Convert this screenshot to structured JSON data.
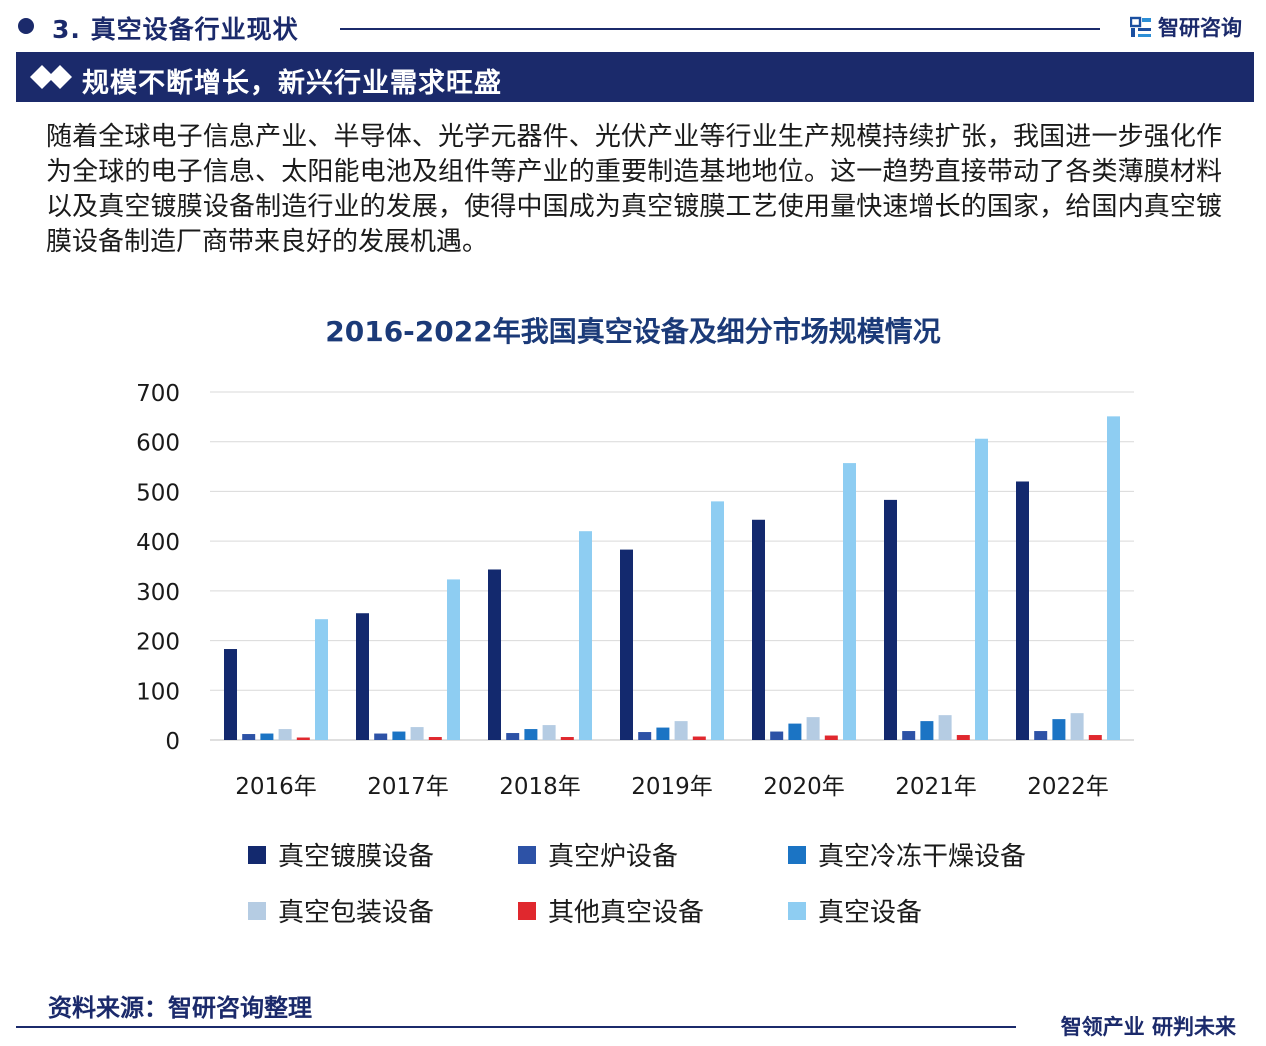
{
  "section": {
    "title": "3. 真空设备行业现状"
  },
  "brand": {
    "name": "智研咨询"
  },
  "banner": {
    "title": "规模不断增长，新兴行业需求旺盛"
  },
  "intro": {
    "text": "随着全球电子信息产业、半导体、光学元器件、光伏产业等行业生产规模持续扩张，我国进一步强化作为全球的电子信息、太阳能电池及组件等产业的重要制造基地地位。这一趋势直接带动了各类薄膜材料以及真空镀膜设备制造行业的发展，使得中国成为真空镀膜工艺使用量快速增长的国家，给国内真空镀膜设备制造厂商带来良好的发展机遇。"
  },
  "chart_data": {
    "type": "bar",
    "title": "2016-2022年我国真空设备及细分市场规模情况",
    "categories": [
      "2016年",
      "2017年",
      "2018年",
      "2019年",
      "2020年",
      "2021年",
      "2022年"
    ],
    "ylim": [
      0,
      700
    ],
    "yticks": [
      0,
      100,
      200,
      300,
      400,
      500,
      600,
      700
    ],
    "grid": true,
    "legend_position": "bottom",
    "series": [
      {
        "name": "真空镀膜设备",
        "color": "#13296e",
        "values": [
          183,
          255,
          343,
          383,
          443,
          483,
          520
        ]
      },
      {
        "name": "真空炉设备",
        "color": "#2d52a6",
        "values": [
          12,
          13,
          14,
          16,
          17,
          18,
          18
        ]
      },
      {
        "name": "真空冷冻干燥设备",
        "color": "#1b74c4",
        "values": [
          13,
          17,
          22,
          25,
          33,
          38,
          42
        ]
      },
      {
        "name": "真空包装设备",
        "color": "#b5cce3",
        "values": [
          22,
          26,
          30,
          38,
          46,
          50,
          54
        ]
      },
      {
        "name": "其他真空设备",
        "color": "#e0282e",
        "values": [
          5,
          6,
          6,
          7,
          9,
          10,
          10
        ]
      },
      {
        "name": "真空设备",
        "color": "#8ecdf2",
        "values": [
          243,
          323,
          420,
          480,
          557,
          606,
          651
        ]
      }
    ]
  },
  "footer": {
    "source": "资料来源：智研咨询整理",
    "slogan": "智领产业 研判未来"
  }
}
